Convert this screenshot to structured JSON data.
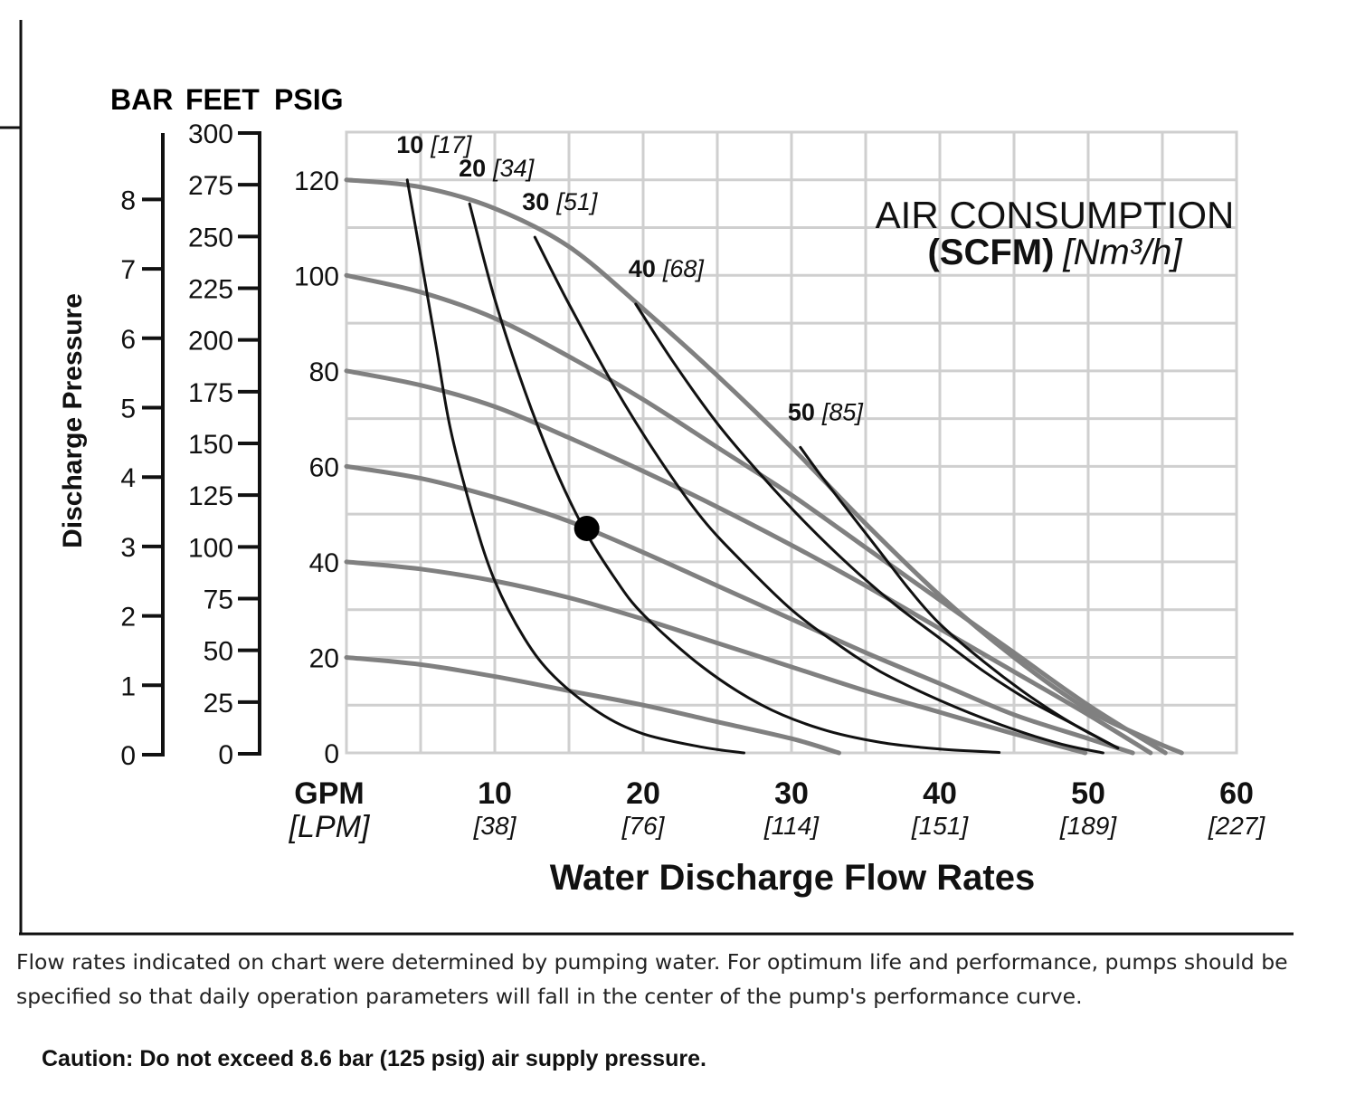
{
  "chart_data": {
    "type": "line",
    "xlabel": "Water Discharge Flow Rates",
    "x_axis_unit_primary": "GPM",
    "x_axis_unit_secondary": "[LPM]",
    "x_ticks": [
      {
        "value": 10,
        "label": "10",
        "secondary": "[38]"
      },
      {
        "value": 20,
        "label": "20",
        "secondary": "[76]"
      },
      {
        "value": 30,
        "label": "30",
        "secondary": "[114]"
      },
      {
        "value": 40,
        "label": "40",
        "secondary": "[151]"
      },
      {
        "value": 50,
        "label": "50",
        "secondary": "[189]"
      },
      {
        "value": 60,
        "label": "60",
        "secondary": "[227]"
      }
    ],
    "xlim": [
      0,
      60
    ],
    "ylabel": "Discharge Pressure",
    "ylim_psig": [
      0,
      130
    ],
    "y_psig_ticks": [
      "0",
      "20",
      "40",
      "60",
      "80",
      "100",
      "120"
    ],
    "y_feet_ticks": [
      "0",
      "25",
      "50",
      "75",
      "100",
      "125",
      "150",
      "175",
      "200",
      "225",
      "250",
      "275",
      "300"
    ],
    "y_bar_ticks": [
      "0",
      "1",
      "2",
      "3",
      "4",
      "5",
      "6",
      "7",
      "8"
    ],
    "y_headers": {
      "bar": "BAR",
      "feet": "FEET",
      "psig": "PSIG"
    },
    "grid": true,
    "legend_title_line1": "AIR CONSUMPTION",
    "legend_title_bold": "(SCFM)",
    "legend_title_italic": "[Nm³/h]",
    "performance_curves": [
      {
        "air_pressure_psig": 120,
        "points": [
          [
            0,
            120
          ],
          [
            5,
            118.5
          ],
          [
            10,
            114
          ],
          [
            15,
            106
          ],
          [
            20,
            93
          ],
          [
            25,
            79
          ],
          [
            30,
            64
          ],
          [
            35,
            48
          ],
          [
            40,
            33
          ],
          [
            45,
            20
          ],
          [
            50,
            9
          ],
          [
            54,
            3
          ],
          [
            56.3,
            0
          ]
        ]
      },
      {
        "air_pressure_psig": 100,
        "points": [
          [
            0,
            100
          ],
          [
            5,
            96.5
          ],
          [
            10,
            91
          ],
          [
            15,
            83
          ],
          [
            20,
            74
          ],
          [
            25,
            64
          ],
          [
            30,
            54
          ],
          [
            35,
            43
          ],
          [
            40,
            32
          ],
          [
            45,
            21
          ],
          [
            50,
            10
          ],
          [
            55.2,
            0
          ]
        ]
      },
      {
        "air_pressure_psig": 80,
        "points": [
          [
            0,
            80
          ],
          [
            5,
            77
          ],
          [
            10,
            72.5
          ],
          [
            15,
            66
          ],
          [
            20,
            59
          ],
          [
            25,
            51.5
          ],
          [
            30,
            43.5
          ],
          [
            35,
            35
          ],
          [
            40,
            26
          ],
          [
            45,
            17
          ],
          [
            50,
            8
          ],
          [
            54.2,
            0
          ]
        ]
      },
      {
        "air_pressure_psig": 60,
        "points": [
          [
            0,
            60
          ],
          [
            5,
            57.5
          ],
          [
            10,
            53.5
          ],
          [
            15,
            48.5
          ],
          [
            20,
            42
          ],
          [
            25,
            35
          ],
          [
            30,
            28
          ],
          [
            35,
            21
          ],
          [
            40,
            14.5
          ],
          [
            45,
            8
          ],
          [
            50,
            3
          ],
          [
            53,
            0
          ]
        ]
      },
      {
        "air_pressure_psig": 40,
        "points": [
          [
            0,
            40
          ],
          [
            5,
            38.5
          ],
          [
            10,
            36
          ],
          [
            15,
            32.5
          ],
          [
            20,
            28
          ],
          [
            25,
            23
          ],
          [
            30,
            18
          ],
          [
            35,
            13
          ],
          [
            40,
            8.5
          ],
          [
            45,
            4
          ],
          [
            49.8,
            0
          ]
        ]
      },
      {
        "air_pressure_psig": 20,
        "points": [
          [
            0,
            20
          ],
          [
            5,
            18.5
          ],
          [
            10,
            16
          ],
          [
            15,
            13
          ],
          [
            20,
            10
          ],
          [
            25,
            6.5
          ],
          [
            30,
            3
          ],
          [
            33.2,
            0
          ]
        ]
      }
    ],
    "air_consumption_curves": [
      {
        "scfm": "10",
        "nm3h": "[17]",
        "points": [
          [
            4.1,
            120
          ],
          [
            5,
            104
          ],
          [
            6,
            86
          ],
          [
            7,
            68
          ],
          [
            8.5,
            50
          ],
          [
            10,
            36
          ],
          [
            12,
            24
          ],
          [
            14,
            16
          ],
          [
            17,
            8.5
          ],
          [
            20,
            4
          ],
          [
            24,
            1.2
          ],
          [
            26.8,
            0
          ]
        ]
      },
      {
        "scfm": "20",
        "nm3h": "[34]",
        "points": [
          [
            8.3,
            115
          ],
          [
            10,
            95
          ],
          [
            12,
            76
          ],
          [
            14,
            60
          ],
          [
            16,
            47
          ],
          [
            18,
            37
          ],
          [
            20,
            29
          ],
          [
            24,
            18
          ],
          [
            28,
            10
          ],
          [
            32,
            5
          ],
          [
            36,
            2.2
          ],
          [
            40,
            0.8
          ],
          [
            44,
            0.1
          ]
        ]
      },
      {
        "scfm": "30",
        "nm3h": "[51]",
        "points": [
          [
            12.7,
            108
          ],
          [
            15,
            94
          ],
          [
            18,
            77
          ],
          [
            21,
            62
          ],
          [
            24,
            49
          ],
          [
            27,
            39
          ],
          [
            30,
            30
          ],
          [
            33,
            23
          ],
          [
            36,
            17
          ],
          [
            40,
            11
          ],
          [
            44,
            6
          ],
          [
            48,
            2
          ],
          [
            51,
            0
          ]
        ]
      },
      {
        "scfm": "40",
        "nm3h": "[68]",
        "points": [
          [
            19.5,
            94
          ],
          [
            22,
            82
          ],
          [
            25,
            69
          ],
          [
            28,
            58
          ],
          [
            31,
            48
          ],
          [
            34,
            39
          ],
          [
            37,
            31
          ],
          [
            40,
            24
          ],
          [
            43,
            17
          ],
          [
            46,
            11
          ],
          [
            49,
            6
          ],
          [
            52,
            1
          ]
        ]
      },
      {
        "scfm": "50",
        "nm3h": "[85]",
        "points": [
          [
            30.6,
            64
          ],
          [
            32,
            58
          ],
          [
            34,
            50
          ],
          [
            36,
            42
          ],
          [
            38,
            34
          ],
          [
            40,
            27
          ],
          [
            43,
            19
          ],
          [
            46,
            12
          ],
          [
            49,
            6
          ],
          [
            52,
            1
          ]
        ]
      }
    ],
    "annotations": [
      {
        "type": "point",
        "x": 16.2,
        "y": 47
      }
    ]
  },
  "footnote": "Flow rates indicated on chart were determined by pumping water. For optimum life and performance, pumps should be specified so that daily operation parameters will fall in the center of the pump's performance curve.",
  "caution": "Caution: Do not exceed 8.6 bar (125 psig) air supply pressure.",
  "colors": {
    "performance_curve": "#808080",
    "air_curve": "#111111",
    "grid": "#cfcfcf"
  }
}
